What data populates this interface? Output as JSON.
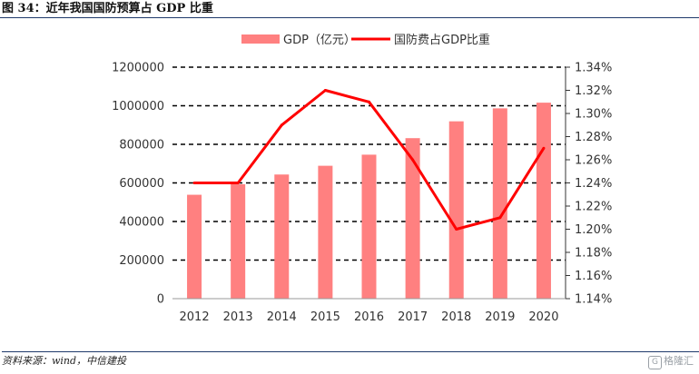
{
  "figure_title": "图 34：近年我国国防预算占 GDP 比重",
  "source_text": "资料来源：wind，中信建投",
  "watermark": {
    "icon": "g-logo-icon",
    "text": "格隆汇"
  },
  "chart_data": {
    "type": "bar-line-combo",
    "categories": [
      "2012",
      "2013",
      "2014",
      "2015",
      "2016",
      "2017",
      "2018",
      "2019",
      "2020"
    ],
    "series": [
      {
        "name": "GDP（亿元）",
        "type": "bar",
        "axis": "left",
        "values": [
          538580,
          592963,
          643563,
          688858,
          746395,
          832036,
          919281,
          986515,
          1015986
        ],
        "color": "#ff8080"
      },
      {
        "name": "国防费占GDP比重",
        "type": "line",
        "axis": "right",
        "values": [
          1.24,
          1.24,
          1.29,
          1.32,
          1.31,
          1.26,
          1.2,
          1.21,
          1.27
        ],
        "color": "#ff0000"
      }
    ],
    "left_axis": {
      "ylim": [
        0,
        1200000
      ],
      "ticks": [
        "0",
        "200000",
        "400000",
        "600000",
        "800000",
        "1000000",
        "1200000"
      ]
    },
    "right_axis": {
      "ylim": [
        1.14,
        1.34
      ],
      "ticks": [
        "1.14%",
        "1.16%",
        "1.18%",
        "1.20%",
        "1.22%",
        "1.24%",
        "1.26%",
        "1.28%",
        "1.30%",
        "1.32%",
        "1.34%"
      ]
    },
    "grid": "dashed-horizontal",
    "legend": "top-center"
  }
}
